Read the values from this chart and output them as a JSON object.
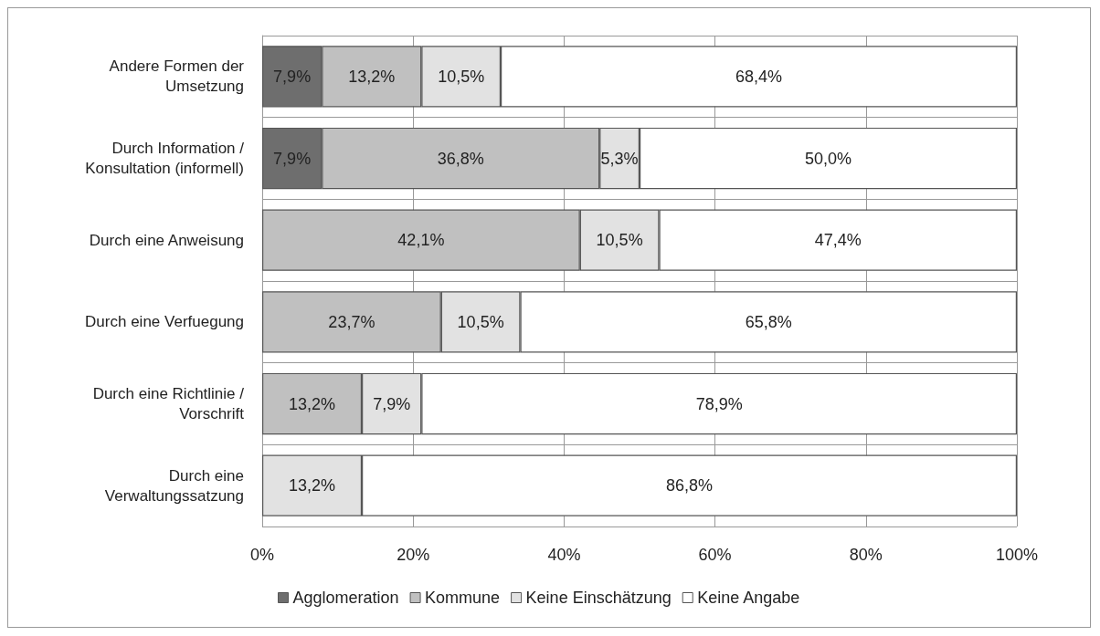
{
  "chart_data": {
    "type": "bar",
    "orientation": "horizontal",
    "stacked": true,
    "categories": [
      "Andere Formen der\nUmsetzung",
      "Durch Information /\nKonsultation (informell)",
      "Durch eine Anweisung",
      "Durch eine Verfuegung",
      "Durch eine Richtlinie /\nVorschrift",
      "Durch eine\nVerwaltungssatzung"
    ],
    "series": [
      {
        "name": "Agglomeration",
        "color": "#6e6e6e",
        "values": [
          7.9,
          7.9,
          null,
          null,
          null,
          null
        ],
        "value_labels": [
          "7,9%",
          "7,9%",
          null,
          null,
          null,
          null
        ]
      },
      {
        "name": "Kommune",
        "color": "#c0c0c0",
        "values": [
          13.2,
          36.8,
          42.1,
          23.7,
          13.2,
          null
        ],
        "value_labels": [
          "13,2%",
          "36,8%",
          "42,1%",
          "23,7%",
          "13,2%",
          null
        ]
      },
      {
        "name": "Keine Einschätzung",
        "color": "#e2e2e2",
        "values": [
          10.5,
          5.3,
          10.5,
          10.5,
          7.9,
          13.2
        ],
        "value_labels": [
          "10,5%",
          "5,3%",
          "10,5%",
          "10,5%",
          "7,9%",
          "13,2%"
        ]
      },
      {
        "name": "Keine Angabe",
        "color": "#ffffff",
        "values": [
          68.4,
          50.0,
          47.4,
          65.8,
          78.9,
          86.8
        ],
        "value_labels": [
          "68,4%",
          "50,0%",
          "47,4%",
          "65,8%",
          "78,9%",
          "86,8%"
        ]
      }
    ],
    "xlim": [
      0,
      100
    ],
    "xticks": [
      {
        "value": 0,
        "label": "0%"
      },
      {
        "value": 20,
        "label": "20%"
      },
      {
        "value": 40,
        "label": "40%"
      },
      {
        "value": 60,
        "label": "60%"
      },
      {
        "value": 80,
        "label": "80%"
      },
      {
        "value": 100,
        "label": "100%"
      }
    ],
    "grid": true,
    "legend": "bottom"
  }
}
